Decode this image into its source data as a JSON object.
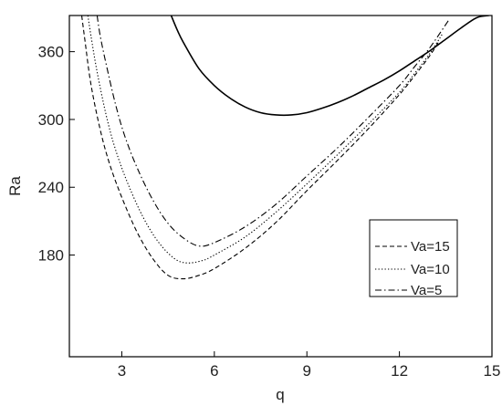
{
  "chart_data": {
    "type": "line",
    "xlabel": "q",
    "ylabel": "Ra",
    "xlim": [
      1.3,
      15
    ],
    "ylim": [
      90,
      392
    ],
    "xticks": [
      "3",
      "6",
      "9",
      "12",
      "15"
    ],
    "yticks": [
      "180",
      "240",
      "300",
      "360"
    ],
    "xtick_values": [
      3,
      6,
      9,
      12,
      15
    ],
    "ytick_values": [
      180,
      240,
      300,
      360
    ],
    "legend_position": "lower-right",
    "series": [
      {
        "name": "",
        "style": "solid",
        "x": [
          4.6,
          4.8,
          5.0,
          5.5,
          6.0,
          6.5,
          7.0,
          7.5,
          8.0,
          8.5,
          9.0,
          9.5,
          10.0,
          10.5,
          11.0,
          11.5,
          12.0,
          12.5,
          13.0,
          13.5,
          14.0,
          14.5,
          14.9
        ],
        "y": [
          392,
          379,
          368,
          345,
          330,
          319,
          311,
          306,
          304,
          304,
          306,
          310,
          315,
          321,
          328,
          335,
          343,
          352,
          361,
          371,
          381,
          390,
          392
        ]
      },
      {
        "name": "Va=15",
        "style": "dash",
        "x": [
          1.7,
          1.8,
          2.0,
          2.3,
          2.6,
          3.0,
          3.5,
          4.0,
          4.5,
          5.0,
          5.5,
          6.0,
          7.0,
          8.0,
          9.0,
          10.0,
          11.0,
          12.0,
          12.5,
          13.0,
          13.3
        ],
        "y": [
          392,
          371,
          331,
          291,
          261,
          231,
          200,
          177,
          162,
          159,
          162,
          168,
          186,
          209,
          237,
          264,
          292,
          322,
          339,
          357,
          370
        ]
      },
      {
        "name": "Va=10",
        "style": "dot",
        "x": [
          1.9,
          2.0,
          2.2,
          2.5,
          2.8,
          3.2,
          3.7,
          4.2,
          4.7,
          5.1,
          5.6,
          6.0,
          7.0,
          8.0,
          9.0,
          10.0,
          11.0,
          12.0,
          12.5,
          13.0,
          13.4
        ],
        "y": [
          392,
          374,
          342,
          303,
          273,
          243,
          213,
          191,
          177,
          173,
          175,
          180,
          196,
          218,
          243,
          269,
          296,
          324,
          341,
          359,
          376
        ]
      },
      {
        "name": "Va=5",
        "style": "dashdot",
        "x": [
          2.2,
          2.3,
          2.5,
          2.8,
          3.1,
          3.5,
          4.0,
          4.5,
          5.0,
          5.5,
          6.0,
          7.0,
          8.0,
          9.0,
          10.0,
          11.0,
          12.0,
          12.5,
          13.0,
          13.6
        ],
        "y": [
          392,
          374,
          348,
          313,
          285,
          257,
          229,
          208,
          195,
          188,
          191,
          205,
          225,
          250,
          275,
          302,
          330,
          347,
          364,
          388
        ]
      }
    ]
  }
}
